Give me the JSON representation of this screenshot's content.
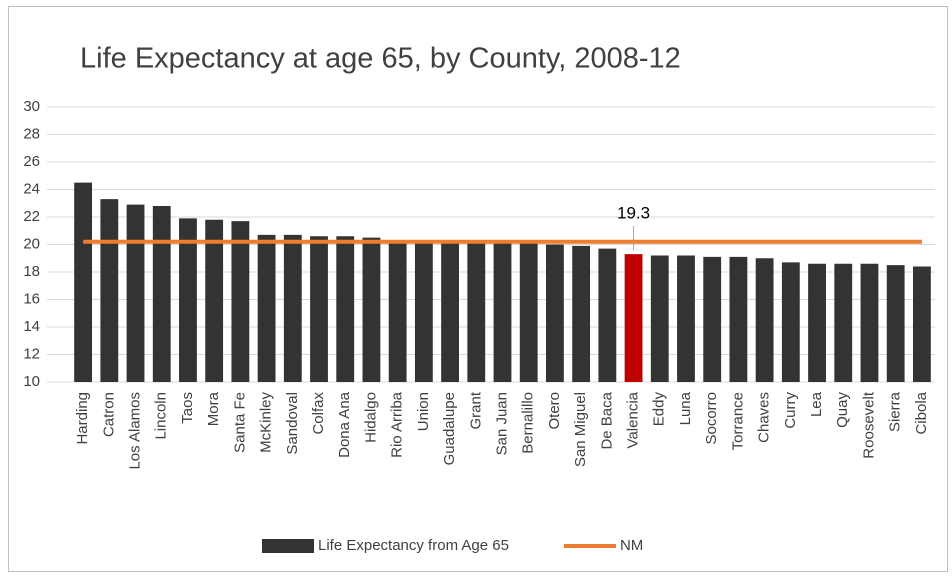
{
  "chart_data": {
    "type": "bar",
    "title": "Life Expectancy at age 65, by County, 2008-12",
    "categories": [
      "Harding",
      "Catron",
      "Los Alamos",
      "Lincoln",
      "Taos",
      "Mora",
      "Santa Fe",
      "McKinley",
      "Sandoval",
      "Colfax",
      "Dona Ana",
      "Hidalgo",
      "Rio Arriba",
      "Union",
      "Guadalupe",
      "Grant",
      "San Juan",
      "Bernalillo",
      "Otero",
      "San Miguel",
      "De Baca",
      "Valencia",
      "Eddy",
      "Luna",
      "Socorro",
      "Torrance",
      "Chaves",
      "Curry",
      "Lea",
      "Quay",
      "Roosevelt",
      "Sierra",
      "Cibola"
    ],
    "series": [
      {
        "name": "Life Expectancy from Age 65",
        "type": "bar",
        "color": "#333333",
        "colors": [
          "#333333",
          "#333333",
          "#333333",
          "#333333",
          "#333333",
          "#333333",
          "#333333",
          "#333333",
          "#333333",
          "#333333",
          "#333333",
          "#333333",
          "#333333",
          "#333333",
          "#333333",
          "#333333",
          "#333333",
          "#333333",
          "#333333",
          "#333333",
          "#333333",
          "#c00000",
          "#333333",
          "#333333",
          "#333333",
          "#333333",
          "#333333",
          "#333333",
          "#333333",
          "#333333",
          "#333333",
          "#333333",
          "#333333"
        ],
        "values": [
          24.5,
          23.3,
          22.9,
          22.8,
          21.9,
          21.8,
          21.7,
          20.7,
          20.7,
          20.6,
          20.6,
          20.5,
          20.2,
          20.2,
          20.1,
          20.1,
          20.1,
          20.1,
          20.0,
          19.9,
          19.7,
          19.3,
          19.2,
          19.2,
          19.1,
          19.1,
          19.0,
          18.7,
          18.6,
          18.6,
          18.6,
          18.5,
          18.4
        ],
        "labeled_index": 21
      },
      {
        "name": "NM",
        "type": "line",
        "color": "#ed7d31",
        "values": [
          20.2,
          20.2,
          20.2,
          20.2,
          20.2,
          20.2,
          20.2,
          20.2,
          20.2,
          20.2,
          20.2,
          20.2,
          20.2,
          20.2,
          20.2,
          20.2,
          20.2,
          20.2,
          20.2,
          20.2,
          20.2,
          20.2,
          20.2,
          20.2,
          20.2,
          20.2,
          20.2,
          20.2,
          20.2,
          20.2,
          20.2,
          20.2,
          20.2
        ]
      }
    ],
    "ylim": [
      10,
      30
    ],
    "yticks": [
      10,
      12,
      14,
      16,
      18,
      20,
      22,
      24,
      26,
      28,
      30
    ],
    "grid": true,
    "legend": "bottom"
  }
}
